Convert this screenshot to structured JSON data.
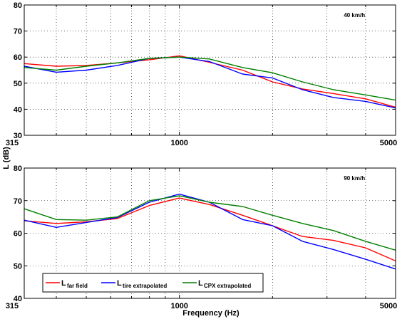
{
  "figure": {
    "xlabel": "Frequency (Hz)",
    "ylabel": "L (dB)"
  },
  "colors": {
    "far_field": "#ff0000",
    "tire": "#0000ff",
    "cpx": "#008000"
  },
  "legend": {
    "placement": "lower-left",
    "items": [
      {
        "main": "L",
        "sub": "far field",
        "color_key": "far_field"
      },
      {
        "main": "L",
        "sub": "tire extrapolated",
        "color_key": "tire"
      },
      {
        "main": "L",
        "sub": "CPX extrapolated",
        "color_key": "cpx"
      }
    ]
  },
  "chart_data": [
    {
      "type": "line",
      "annotation": "40 km/h",
      "x_scale": "log",
      "xlim": [
        315,
        5000
      ],
      "ylim": [
        30,
        80
      ],
      "yticks": [
        30,
        40,
        50,
        60,
        70,
        80
      ],
      "xtick_labels": [
        315,
        1000,
        5000
      ],
      "grid": true,
      "x": [
        315,
        400,
        500,
        630,
        800,
        1000,
        1250,
        1600,
        2000,
        2500,
        3150,
        4000,
        5000
      ],
      "series": [
        {
          "key": "far_field",
          "values": [
            57.5,
            56.5,
            56.8,
            57.8,
            59.0,
            60.5,
            58.0,
            55.0,
            50.5,
            47.8,
            46.0,
            44.0,
            40.8
          ]
        },
        {
          "key": "tire",
          "values": [
            56.5,
            54.2,
            55.0,
            56.8,
            59.5,
            60.0,
            58.3,
            53.5,
            52.0,
            47.5,
            44.5,
            43.0,
            40.5
          ]
        },
        {
          "key": "cpx",
          "values": [
            56.0,
            55.0,
            56.5,
            57.8,
            59.5,
            60.0,
            59.3,
            56.0,
            54.0,
            50.5,
            47.5,
            45.5,
            43.5
          ]
        }
      ]
    },
    {
      "type": "line",
      "annotation": "90 km/h",
      "x_scale": "log",
      "xlim": [
        315,
        5000
      ],
      "ylim": [
        40,
        80
      ],
      "yticks": [
        40,
        50,
        60,
        70,
        80
      ],
      "xtick_labels": [
        315,
        1000,
        5000
      ],
      "grid": true,
      "x": [
        315,
        400,
        500,
        630,
        800,
        1000,
        1250,
        1600,
        2000,
        2500,
        3150,
        4000,
        5000
      ],
      "series": [
        {
          "key": "far_field",
          "values": [
            63.8,
            63.0,
            63.5,
            64.5,
            68.5,
            70.8,
            68.8,
            65.5,
            62.3,
            59.0,
            57.8,
            55.5,
            51.5
          ]
        },
        {
          "key": "tire",
          "values": [
            64.0,
            61.8,
            63.3,
            64.8,
            69.5,
            72.0,
            69.5,
            64.2,
            62.3,
            57.5,
            55.0,
            52.0,
            49.0
          ]
        },
        {
          "key": "cpx",
          "values": [
            67.5,
            64.2,
            64.0,
            65.0,
            70.0,
            71.5,
            69.5,
            68.2,
            65.5,
            63.0,
            60.8,
            57.5,
            54.8
          ]
        }
      ]
    }
  ]
}
